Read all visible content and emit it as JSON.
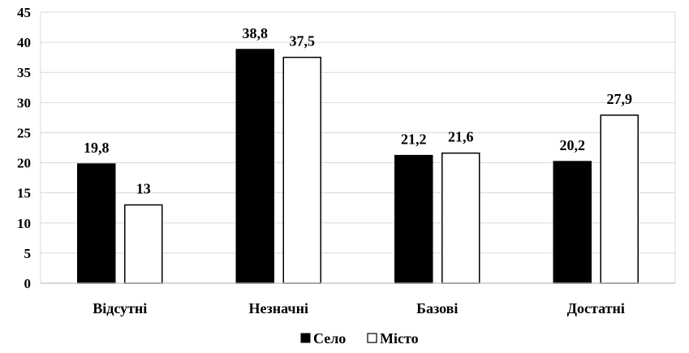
{
  "chart_data": {
    "type": "bar",
    "categories": [
      "Відсутні",
      "Незначні",
      "Базові",
      "Достатні"
    ],
    "series": [
      {
        "name": "Село",
        "values": [
          19.8,
          38.8,
          21.2,
          20.2
        ],
        "labels": [
          "19,8",
          "38,8",
          "21,2",
          "20,2"
        ],
        "color": "#000000"
      },
      {
        "name": "Місто",
        "values": [
          13,
          37.5,
          21.6,
          27.9
        ],
        "labels": [
          "13",
          "37,5",
          "21,6",
          "27,9"
        ],
        "color": "#ffffff"
      }
    ],
    "yticks": [
      "0",
      "5",
      "10",
      "15",
      "20",
      "25",
      "30",
      "35",
      "40",
      "45"
    ],
    "ylim": [
      0,
      45
    ],
    "grid": true,
    "legend_position": "bottom-center"
  }
}
